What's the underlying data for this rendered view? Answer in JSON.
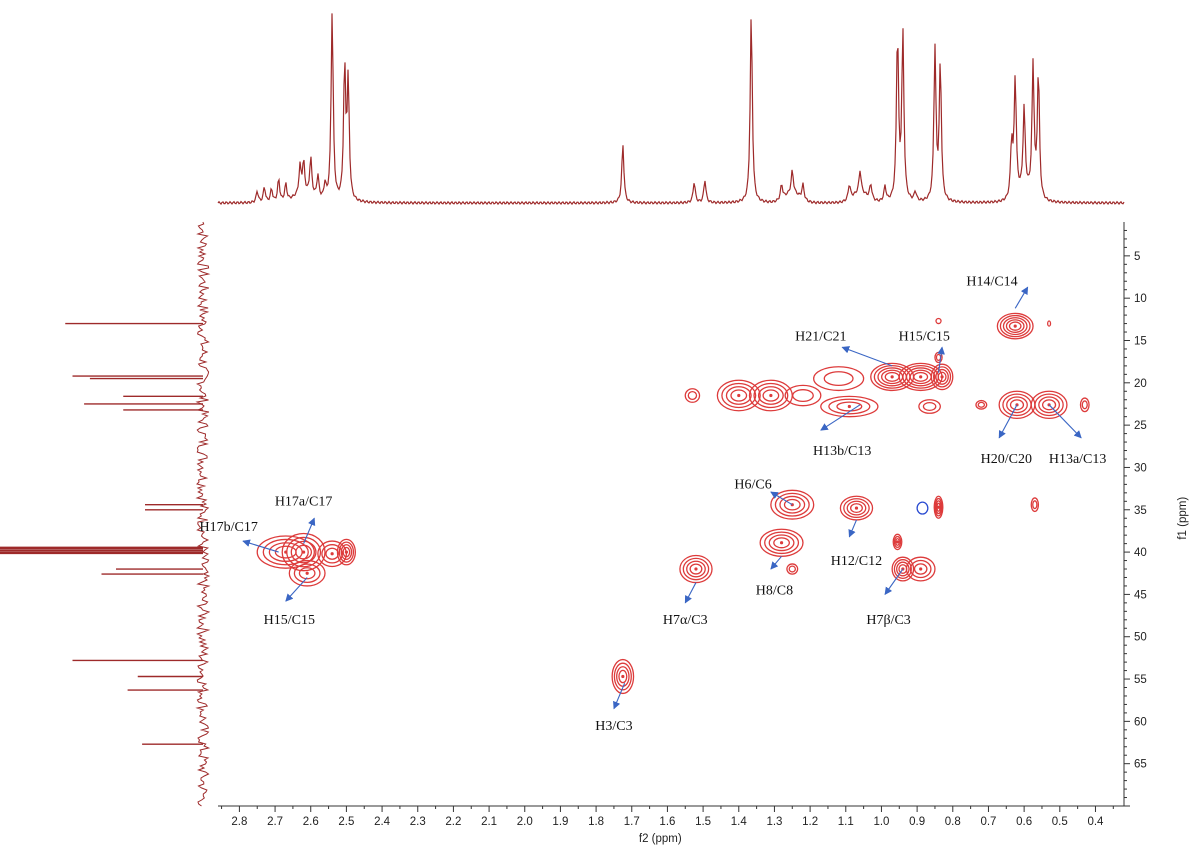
{
  "chart_data": {
    "type": "heatmap",
    "title": "",
    "xlabel": "f2 (ppm)",
    "ylabel": "f1 (ppm)",
    "x_range": [
      2.86,
      0.32
    ],
    "y_range": [
      1,
      70
    ],
    "x_ticks": [
      "2.8",
      "2.7",
      "2.6",
      "2.5",
      "2.4",
      "2.3",
      "2.2",
      "2.1",
      "2.0",
      "1.9",
      "1.8",
      "1.7",
      "1.6",
      "1.5",
      "1.4",
      "1.3",
      "1.2",
      "1.1",
      "1.0",
      "0.9",
      "0.8",
      "0.7",
      "0.6",
      "0.5",
      "0.4"
    ],
    "y_ticks": [
      "5",
      "10",
      "15",
      "20",
      "25",
      "30",
      "35",
      "40",
      "45",
      "50",
      "55",
      "60",
      "65"
    ],
    "proton_peaks": [
      {
        "ppm": 2.75,
        "height": 0.06
      },
      {
        "ppm": 2.73,
        "height": 0.08
      },
      {
        "ppm": 2.71,
        "height": 0.07
      },
      {
        "ppm": 2.69,
        "height": 0.12
      },
      {
        "ppm": 2.67,
        "height": 0.09
      },
      {
        "ppm": 2.63,
        "height": 0.15
      },
      {
        "ppm": 2.62,
        "height": 0.17
      },
      {
        "ppm": 2.6,
        "height": 0.2
      },
      {
        "ppm": 2.58,
        "height": 0.12
      },
      {
        "ppm": 2.56,
        "height": 0.08
      },
      {
        "ppm": 2.54,
        "height": 1.0
      },
      {
        "ppm": 2.505,
        "height": 0.7
      },
      {
        "ppm": 2.495,
        "height": 0.62
      },
      {
        "ppm": 1.725,
        "height": 0.31
      },
      {
        "ppm": 1.525,
        "height": 0.11
      },
      {
        "ppm": 1.495,
        "height": 0.12
      },
      {
        "ppm": 1.365,
        "height": 1.0
      },
      {
        "ppm": 1.28,
        "height": 0.08
      },
      {
        "ppm": 1.25,
        "height": 0.12
      },
      {
        "ppm": 1.22,
        "height": 0.08
      },
      {
        "ppm": 1.09,
        "height": 0.08
      },
      {
        "ppm": 1.06,
        "height": 0.12
      },
      {
        "ppm": 1.03,
        "height": 0.08
      },
      {
        "ppm": 0.99,
        "height": 0.08
      },
      {
        "ppm": 0.955,
        "height": 0.88
      },
      {
        "ppm": 0.94,
        "height": 0.88
      },
      {
        "ppm": 0.905,
        "height": 0.05
      },
      {
        "ppm": 0.85,
        "height": 0.8
      },
      {
        "ppm": 0.835,
        "height": 0.72
      },
      {
        "ppm": 0.635,
        "height": 0.29
      },
      {
        "ppm": 0.625,
        "height": 0.62
      },
      {
        "ppm": 0.6,
        "height": 0.44
      },
      {
        "ppm": 0.575,
        "height": 0.69
      },
      {
        "ppm": 0.56,
        "height": 0.67
      }
    ],
    "carbon_peaks": [
      {
        "ppm": 13.0,
        "length": 0.95
      },
      {
        "ppm": 19.2,
        "length": 0.9
      },
      {
        "ppm": 19.5,
        "length": 0.78
      },
      {
        "ppm": 21.6,
        "length": 0.55
      },
      {
        "ppm": 22.5,
        "length": 0.82
      },
      {
        "ppm": 23.2,
        "length": 0.55
      },
      {
        "ppm": 34.4,
        "length": 0.4
      },
      {
        "ppm": 35.0,
        "length": 0.4
      },
      {
        "ppm": 39.5,
        "length": 1.4
      },
      {
        "ppm": 39.8,
        "length": 1.4
      },
      {
        "ppm": 40.1,
        "length": 1.4
      },
      {
        "ppm": 42.0,
        "length": 0.6
      },
      {
        "ppm": 42.6,
        "length": 0.7
      },
      {
        "ppm": 52.8,
        "length": 0.9
      },
      {
        "ppm": 54.7,
        "length": 0.45
      },
      {
        "ppm": 56.3,
        "length": 0.52
      },
      {
        "ppm": 62.7,
        "length": 0.42
      }
    ],
    "cross_peaks": [
      {
        "x": 2.67,
        "y": 40.0,
        "rx": 0.08,
        "ry": 1.9,
        "levels": 4
      },
      {
        "x": 2.62,
        "y": 40.0,
        "rx": 0.06,
        "ry": 2.2,
        "levels": 4
      },
      {
        "x": 2.61,
        "y": 42.5,
        "rx": 0.05,
        "ry": 1.5,
        "levels": 3
      },
      {
        "x": 2.54,
        "y": 40.2,
        "rx": 0.04,
        "ry": 1.5,
        "levels": 3
      },
      {
        "x": 2.5,
        "y": 40.0,
        "rx": 0.025,
        "ry": 1.5,
        "levels": 4
      },
      {
        "x": 1.725,
        "y": 54.7,
        "rx": 0.03,
        "ry": 2.0,
        "levels": 4
      },
      {
        "x": 1.52,
        "y": 42.0,
        "rx": 0.045,
        "ry": 1.6,
        "levels": 4
      },
      {
        "x": 1.53,
        "y": 21.5,
        "rx": 0.02,
        "ry": 0.8,
        "levels": 2
      },
      {
        "x": 1.4,
        "y": 21.5,
        "rx": 0.06,
        "ry": 1.8,
        "levels": 4
      },
      {
        "x": 1.31,
        "y": 21.5,
        "rx": 0.06,
        "ry": 1.8,
        "levels": 4
      },
      {
        "x": 1.22,
        "y": 21.5,
        "rx": 0.05,
        "ry": 1.2,
        "levels": 2
      },
      {
        "x": 1.25,
        "y": 34.4,
        "rx": 0.06,
        "ry": 1.7,
        "levels": 4
      },
      {
        "x": 1.28,
        "y": 38.9,
        "rx": 0.06,
        "ry": 1.6,
        "levels": 4
      },
      {
        "x": 1.25,
        "y": 42.0,
        "rx": 0.015,
        "ry": 0.6,
        "levels": 2
      },
      {
        "x": 1.12,
        "y": 19.5,
        "rx": 0.07,
        "ry": 1.4,
        "levels": 2
      },
      {
        "x": 1.09,
        "y": 22.8,
        "rx": 0.08,
        "ry": 1.2,
        "levels": 3
      },
      {
        "x": 1.07,
        "y": 34.8,
        "rx": 0.045,
        "ry": 1.4,
        "levels": 4
      },
      {
        "x": 0.97,
        "y": 19.3,
        "rx": 0.06,
        "ry": 1.6,
        "levels": 5
      },
      {
        "x": 0.89,
        "y": 19.3,
        "rx": 0.06,
        "ry": 1.6,
        "levels": 5
      },
      {
        "x": 0.83,
        "y": 19.3,
        "rx": 0.03,
        "ry": 1.5,
        "levels": 4
      },
      {
        "x": 0.865,
        "y": 22.8,
        "rx": 0.03,
        "ry": 0.8,
        "levels": 2
      },
      {
        "x": 0.84,
        "y": 12.7,
        "rx": 0.007,
        "ry": 0.3,
        "levels": 1
      },
      {
        "x": 0.84,
        "y": 17.0,
        "rx": 0.01,
        "ry": 0.6,
        "levels": 2
      },
      {
        "x": 0.955,
        "y": 38.8,
        "rx": 0.012,
        "ry": 0.9,
        "levels": 3
      },
      {
        "x": 0.84,
        "y": 34.7,
        "rx": 0.012,
        "ry": 1.3,
        "levels": 4
      },
      {
        "x": 0.94,
        "y": 42.0,
        "rx": 0.03,
        "ry": 1.4,
        "levels": 4
      },
      {
        "x": 0.89,
        "y": 42.0,
        "rx": 0.04,
        "ry": 1.4,
        "levels": 3
      },
      {
        "x": 0.72,
        "y": 22.6,
        "rx": 0.015,
        "ry": 0.5,
        "levels": 2
      },
      {
        "x": 0.625,
        "y": 13.3,
        "rx": 0.05,
        "ry": 1.5,
        "levels": 5
      },
      {
        "x": 0.62,
        "y": 22.6,
        "rx": 0.05,
        "ry": 1.6,
        "levels": 4
      },
      {
        "x": 0.53,
        "y": 22.6,
        "rx": 0.05,
        "ry": 1.6,
        "levels": 4
      },
      {
        "x": 0.43,
        "y": 22.6,
        "rx": 0.012,
        "ry": 0.8,
        "levels": 2
      },
      {
        "x": 0.57,
        "y": 34.4,
        "rx": 0.01,
        "ry": 0.8,
        "levels": 2
      },
      {
        "x": 0.53,
        "y": 13.0,
        "rx": 0.004,
        "ry": 0.3,
        "levels": 1
      }
    ],
    "negative_peaks": [
      {
        "x": 0.885,
        "y": 34.8,
        "rx": 0.015,
        "ry": 0.7,
        "levels": 1
      }
    ],
    "annotations": [
      {
        "label": "H14/C14",
        "tx": 0.69,
        "ty": 8.5,
        "ax1": 0.625,
        "ay1": 11.2,
        "ax2": 0.59,
        "ay2": 8.7
      },
      {
        "label": "H15/C15",
        "tx": 0.88,
        "ty": 15.0,
        "ax1": 0.84,
        "ay1": 18.8,
        "ax2": 0.83,
        "ay2": 15.8
      },
      {
        "label": "H21/C21",
        "tx": 1.17,
        "ty": 15.0,
        "ax1": 0.97,
        "ay1": 18.0,
        "ax2": 1.11,
        "ay2": 15.8
      },
      {
        "label": "H13b/C13",
        "tx": 1.11,
        "ty": 28.5,
        "ax1": 1.06,
        "ay1": 22.6,
        "ax2": 1.17,
        "ay2": 25.6
      },
      {
        "label": "H20/C20",
        "tx": 0.65,
        "ty": 29.5,
        "ax1": 0.62,
        "ay1": 22.6,
        "ax2": 0.67,
        "ay2": 26.5
      },
      {
        "label": "H13a/C13",
        "tx": 0.45,
        "ty": 29.5,
        "ax1": 0.53,
        "ay1": 22.6,
        "ax2": 0.44,
        "ay2": 26.5
      },
      {
        "label": "H6/C6",
        "tx": 1.36,
        "ty": 32.5,
        "ax1": 1.25,
        "ay1": 34.4,
        "ax2": 1.31,
        "ay2": 32.9
      },
      {
        "label": "H12/C12",
        "tx": 1.07,
        "ty": 41.5,
        "ax1": 1.07,
        "ay1": 36.2,
        "ax2": 1.09,
        "ay2": 38.2
      },
      {
        "label": "H8/C8",
        "tx": 1.3,
        "ty": 45.0,
        "ax1": 1.28,
        "ay1": 40.5,
        "ax2": 1.31,
        "ay2": 42.0
      },
      {
        "label": "H7β/C3",
        "tx": 0.98,
        "ty": 48.5,
        "ax1": 0.94,
        "ay1": 42.0,
        "ax2": 0.99,
        "ay2": 45.0
      },
      {
        "label": "H7α/C3",
        "tx": 1.55,
        "ty": 48.5,
        "ax1": 1.52,
        "ay1": 43.6,
        "ax2": 1.55,
        "ay2": 46.0
      },
      {
        "label": "H3/C3",
        "tx": 1.75,
        "ty": 61.0,
        "ax1": 1.72,
        "ay1": 55.5,
        "ax2": 1.75,
        "ay2": 58.5
      },
      {
        "label": "H17a/C17",
        "tx": 2.62,
        "ty": 34.5,
        "ax1": 2.62,
        "ay1": 39.0,
        "ax2": 2.59,
        "ay2": 36.0
      },
      {
        "label": "H17b/C17",
        "tx": 2.83,
        "ty": 37.5,
        "ax1": 2.69,
        "ay1": 40.0,
        "ax2": 2.79,
        "ay2": 38.7
      },
      {
        "label": "H15/C15",
        "tx": 2.66,
        "ty": 48.5,
        "ax1": 2.61,
        "ay1": 43.0,
        "ax2": 2.67,
        "ay2": 45.8
      }
    ],
    "colors": {
      "positive": "#dd3b3b",
      "negative": "#2b4cd1",
      "spectrum": "#9e2a2a",
      "arrow": "#3a66c4",
      "axis": "#333333"
    },
    "grid": false,
    "legend": "none"
  }
}
